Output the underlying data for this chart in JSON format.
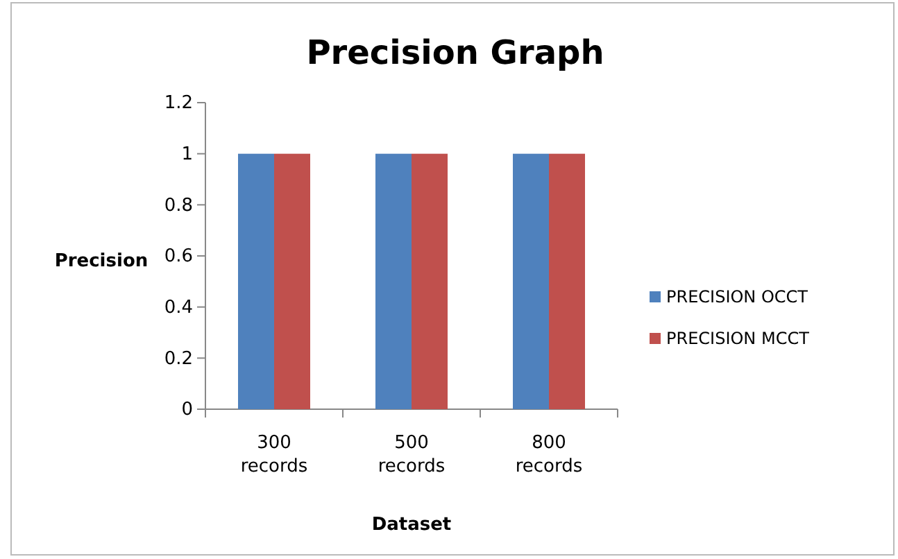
{
  "chart_data": {
    "type": "bar",
    "title": "Precision Graph",
    "xlabel": "Dataset",
    "ylabel": "Precision",
    "categories": [
      "300 records",
      "500 records",
      "800 records"
    ],
    "series": [
      {
        "name": "PRECISION OCCT",
        "color": "#4f81bd",
        "values": [
          1,
          1,
          1
        ]
      },
      {
        "name": "PRECISION MCCT",
        "color": "#c0504d",
        "values": [
          1,
          1,
          1
        ]
      }
    ],
    "ylim": [
      0,
      1.2
    ],
    "yticks": [
      0,
      0.2,
      0.4,
      0.6,
      0.8,
      1,
      1.2
    ],
    "grid": false,
    "legend": "right"
  }
}
